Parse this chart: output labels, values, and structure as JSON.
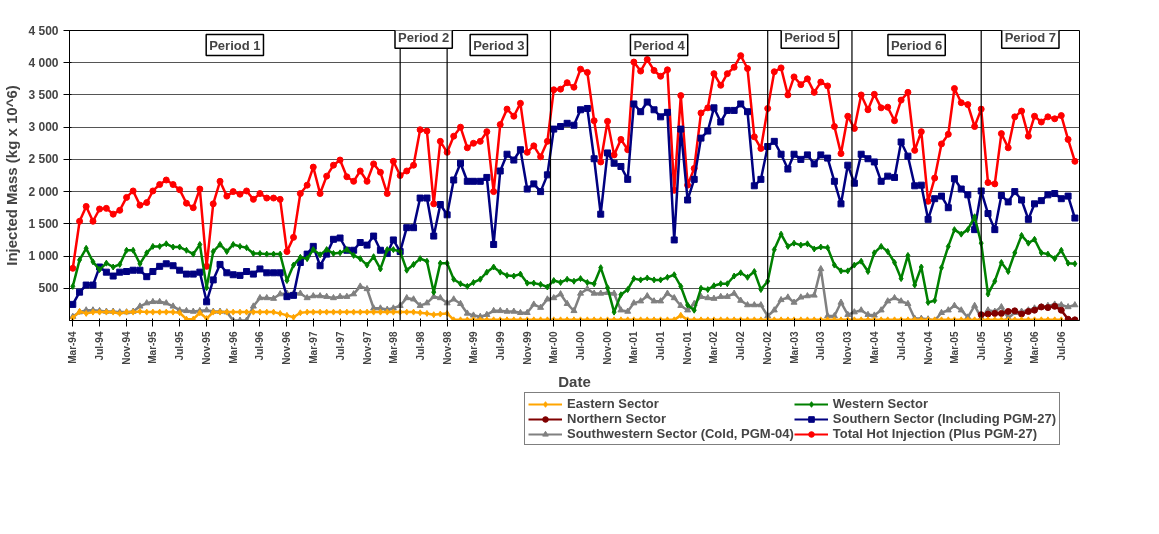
{
  "chart_data": {
    "type": "line",
    "xlabel": "Date",
    "ylabel": "Injected Mass (kg x 10^6)",
    "x": [
      "1994-03",
      "1994-04",
      "1994-05",
      "1994-06",
      "1994-07",
      "1994-08",
      "1994-09",
      "1994-10",
      "1994-11",
      "1994-12",
      "1995-01",
      "1995-02",
      "1995-03",
      "1995-04",
      "1995-05",
      "1995-06",
      "1995-07",
      "1995-08",
      "1995-09",
      "1995-10",
      "1995-11",
      "1995-12",
      "1996-01",
      "1996-02",
      "1996-03",
      "1996-04",
      "1996-05",
      "1996-06",
      "1996-07",
      "1996-08",
      "1996-09",
      "1996-10",
      "1996-11",
      "1996-12",
      "1997-01",
      "1997-02",
      "1997-03",
      "1997-04",
      "1997-05",
      "1997-06",
      "1997-07",
      "1997-08",
      "1997-09",
      "1997-10",
      "1997-11",
      "1997-12",
      "1998-01",
      "1998-02",
      "1998-03",
      "1998-04",
      "1998-05",
      "1998-06",
      "1998-07",
      "1998-08",
      "1998-09",
      "1998-10",
      "1998-11",
      "1998-12",
      "1999-01",
      "1999-02",
      "1999-03",
      "1999-04",
      "1999-05",
      "1999-06",
      "1999-07",
      "1999-08",
      "1999-09",
      "1999-10",
      "1999-11",
      "1999-12",
      "2000-01",
      "2000-02",
      "2000-03",
      "2000-04",
      "2000-05",
      "2000-06",
      "2000-07",
      "2000-08",
      "2000-09",
      "2000-10",
      "2000-11",
      "2000-12",
      "2001-01",
      "2001-02",
      "2001-03",
      "2001-04",
      "2001-05",
      "2001-06",
      "2001-07",
      "2001-08",
      "2001-09",
      "2001-10",
      "2001-11",
      "2001-12",
      "2002-01",
      "2002-02",
      "2002-03",
      "2002-04",
      "2002-05",
      "2002-06",
      "2002-07",
      "2002-08",
      "2002-09",
      "2002-10",
      "2002-11",
      "2002-12",
      "2003-01",
      "2003-02",
      "2003-03",
      "2003-04",
      "2003-05",
      "2003-06",
      "2003-07",
      "2003-08",
      "2003-09",
      "2003-10",
      "2003-11",
      "2003-12",
      "2004-01",
      "2004-02",
      "2004-03",
      "2004-04",
      "2004-05",
      "2004-06",
      "2004-07",
      "2004-08",
      "2004-09",
      "2004-10",
      "2004-11",
      "2004-12",
      "2005-01",
      "2005-02",
      "2005-03",
      "2005-04",
      "2005-05",
      "2005-06",
      "2005-07",
      "2005-08",
      "2005-09",
      "2005-10",
      "2005-11",
      "2005-12",
      "2006-01",
      "2006-02",
      "2006-03",
      "2006-04",
      "2006-05",
      "2006-06",
      "2006-07",
      "2006-08",
      "2006-09"
    ],
    "xlim": [
      "1994-02-14",
      "2006-09-22"
    ],
    "xticks": [
      {
        "value": "1994-03",
        "label": "Mar-94"
      },
      {
        "value": "1994-07",
        "label": "Jul-94"
      },
      {
        "value": "1994-11",
        "label": "Nov-94"
      },
      {
        "value": "1995-03",
        "label": "Mar-95"
      },
      {
        "value": "1995-07",
        "label": "Jul-95"
      },
      {
        "value": "1995-11",
        "label": "Nov-95"
      },
      {
        "value": "1996-03",
        "label": "Mar-96"
      },
      {
        "value": "1996-07",
        "label": "Jul-96"
      },
      {
        "value": "1996-11",
        "label": "Nov-96"
      },
      {
        "value": "1997-03",
        "label": "Mar-97"
      },
      {
        "value": "1997-07",
        "label": "Jul-97"
      },
      {
        "value": "1997-11",
        "label": "Nov-97"
      },
      {
        "value": "1998-03",
        "label": "Mar-98"
      },
      {
        "value": "1998-07",
        "label": "Jul-98"
      },
      {
        "value": "1998-11",
        "label": "Nov-98"
      },
      {
        "value": "1999-03",
        "label": "Mar-99"
      },
      {
        "value": "1999-07",
        "label": "Jul-99"
      },
      {
        "value": "1999-11",
        "label": "Nov-99"
      },
      {
        "value": "2000-03",
        "label": "Mar-00"
      },
      {
        "value": "2000-07",
        "label": "Jul-00"
      },
      {
        "value": "2000-11",
        "label": "Nov-00"
      },
      {
        "value": "2001-03",
        "label": "Mar-01"
      },
      {
        "value": "2001-07",
        "label": "Jul-01"
      },
      {
        "value": "2001-11",
        "label": "Nov-01"
      },
      {
        "value": "2002-03",
        "label": "Mar-02"
      },
      {
        "value": "2002-07",
        "label": "Jul-02"
      },
      {
        "value": "2002-11",
        "label": "Nov-02"
      },
      {
        "value": "2003-03",
        "label": "Mar-03"
      },
      {
        "value": "2003-07",
        "label": "Jul-03"
      },
      {
        "value": "2003-11",
        "label": "Nov-03"
      },
      {
        "value": "2004-03",
        "label": "Mar-04"
      },
      {
        "value": "2004-07",
        "label": "Jul-04"
      },
      {
        "value": "2004-11",
        "label": "Nov-04"
      },
      {
        "value": "2005-03",
        "label": "Mar-05"
      },
      {
        "value": "2005-07",
        "label": "Jul-05"
      },
      {
        "value": "2005-11",
        "label": "Nov-05"
      },
      {
        "value": "2006-03",
        "label": "Mar-06"
      },
      {
        "value": "2006-07",
        "label": "Jul-06"
      }
    ],
    "ylim": [
      0,
      4500
    ],
    "yticks": [
      500,
      {
        "value": 1000,
        "label": "1 000"
      },
      {
        "value": 1500,
        "label": "1 500"
      },
      {
        "value": 2000,
        "label": "2 000"
      },
      {
        "value": 2500,
        "label": "2 500"
      },
      {
        "value": 3000,
        "label": "3 000"
      },
      {
        "value": 3500,
        "label": "3 500"
      },
      {
        "value": 4000,
        "label": "4 000"
      },
      {
        "value": 4500,
        "label": "4 500"
      }
    ],
    "grid": "y",
    "legend": "bottom",
    "series": [
      {
        "name": "Eastern Sector",
        "color": "#ffa500",
        "marker": "diamond",
        "values": [
          40,
          140,
          110,
          130,
          130,
          130,
          130,
          110,
          130,
          130,
          140,
          130,
          130,
          130,
          130,
          130,
          120,
          20,
          20,
          120,
          30,
          130,
          130,
          130,
          130,
          130,
          130,
          130,
          130,
          130,
          130,
          110,
          80,
          50,
          120,
          130,
          130,
          130,
          130,
          130,
          130,
          130,
          130,
          130,
          130,
          130,
          130,
          130,
          130,
          130,
          130,
          130,
          120,
          110,
          90,
          100,
          110,
          10,
          10,
          10,
          10,
          10,
          10,
          10,
          10,
          10,
          10,
          10,
          10,
          10,
          10,
          10,
          10,
          10,
          10,
          10,
          10,
          10,
          10,
          10,
          10,
          10,
          10,
          10,
          10,
          10,
          10,
          10,
          10,
          10,
          10,
          80,
          10,
          10,
          10,
          10,
          10,
          10,
          10,
          10,
          10,
          10,
          10,
          10,
          10,
          10,
          10,
          10,
          10,
          10,
          10,
          10,
          10,
          10,
          10,
          10,
          10,
          10,
          10,
          10,
          10,
          10,
          10,
          10,
          10,
          10,
          10,
          10,
          10,
          10,
          10,
          10,
          10,
          10,
          10,
          10,
          10,
          10,
          10,
          10,
          10,
          10,
          10,
          10,
          10,
          10,
          10,
          10,
          10,
          null,
          null
        ]
      },
      {
        "name": "Western Sector",
        "color": "#008000",
        "marker": "diamond",
        "values": [
          530,
          940,
          1120,
          910,
          790,
          890,
          830,
          870,
          1090,
          1090,
          880,
          1050,
          1150,
          1150,
          1190,
          1140,
          1140,
          1090,
          1030,
          1180,
          510,
          1070,
          1180,
          1070,
          1180,
          1150,
          1130,
          1040,
          1040,
          1030,
          1030,
          1030,
          620,
          860,
          980,
          960,
          1100,
          1020,
          1100,
          1040,
          1050,
          1100,
          1010,
          960,
          860,
          990,
          800,
          1100,
          1100,
          1070,
          780,
          870,
          960,
          920,
          440,
          890,
          890,
          640,
          570,
          530,
          590,
          640,
          750,
          830,
          750,
          700,
          690,
          720,
          580,
          580,
          560,
          520,
          620,
          590,
          640,
          610,
          650,
          590,
          570,
          820,
          510,
          130,
          400,
          480,
          650,
          630,
          660,
          630,
          630,
          670,
          710,
          530,
          240,
          160,
          500,
          480,
          540,
          570,
          570,
          690,
          740,
          670,
          760,
          480,
          610,
          1100,
          1340,
          1150,
          1200,
          1170,
          1190,
          1110,
          1140,
          1130,
          860,
          770,
          770,
          860,
          920,
          760,
          1050,
          1150,
          1070,
          900,
          650,
          1010,
          550,
          830,
          280,
          310,
          820,
          1150,
          1410,
          1340,
          1410,
          1610,
          1200,
          410,
          610,
          900,
          760,
          1050,
          1320,
          1200,
          1260,
          1050,
          1030,
          960,
          1090,
          890,
          880
        ]
      },
      {
        "name": "Northern Sector",
        "color": "#800000",
        "marker": "circle",
        "values": [
          null,
          null,
          null,
          null,
          null,
          null,
          null,
          null,
          null,
          null,
          null,
          null,
          null,
          null,
          null,
          null,
          null,
          null,
          null,
          null,
          null,
          null,
          null,
          null,
          null,
          null,
          null,
          null,
          null,
          null,
          null,
          null,
          null,
          null,
          null,
          null,
          null,
          null,
          null,
          null,
          null,
          null,
          null,
          null,
          null,
          null,
          null,
          null,
          null,
          null,
          null,
          null,
          null,
          null,
          null,
          null,
          null,
          null,
          null,
          null,
          null,
          null,
          null,
          null,
          null,
          null,
          null,
          null,
          null,
          null,
          null,
          null,
          null,
          null,
          null,
          null,
          null,
          null,
          null,
          null,
          null,
          null,
          null,
          null,
          null,
          null,
          null,
          null,
          null,
          null,
          null,
          null,
          null,
          null,
          null,
          null,
          null,
          null,
          null,
          null,
          null,
          null,
          null,
          null,
          null,
          null,
          null,
          null,
          null,
          null,
          null,
          null,
          null,
          null,
          null,
          null,
          null,
          null,
          null,
          null,
          null,
          null,
          null,
          null,
          null,
          null,
          null,
          null,
          null,
          null,
          null,
          null,
          null,
          null,
          null,
          null,
          90,
          100,
          110,
          110,
          140,
          150,
          100,
          140,
          160,
          210,
          200,
          220,
          160,
          20,
          10
        ]
      },
      {
        "name": "Southern Sector (Including PGM-27)",
        "color": "#000080",
        "marker": "square",
        "values": [
          250,
          440,
          550,
          550,
          830,
          750,
          690,
          750,
          760,
          780,
          780,
          680,
          760,
          840,
          880,
          850,
          780,
          720,
          720,
          750,
          290,
          630,
          870,
          740,
          710,
          700,
          760,
          720,
          800,
          740,
          740,
          740,
          370,
          390,
          900,
          1030,
          1150,
          850,
          1030,
          1260,
          1280,
          1090,
          1090,
          1210,
          1170,
          1310,
          1090,
          1040,
          1250,
          1070,
          1440,
          1440,
          1900,
          1900,
          1310,
          1800,
          1640,
          2180,
          2440,
          2160,
          2160,
          2160,
          2220,
          1180,
          2320,
          2580,
          2490,
          2650,
          2040,
          2120,
          2000,
          2260,
          2970,
          3010,
          3060,
          3030,
          3270,
          3290,
          2510,
          1650,
          2600,
          2440,
          2390,
          2190,
          3360,
          3240,
          3390,
          3270,
          3160,
          3230,
          1250,
          2970,
          1870,
          2190,
          2830,
          2940,
          3300,
          3080,
          3260,
          3260,
          3360,
          3240,
          2090,
          2190,
          2700,
          2780,
          2580,
          2350,
          2580,
          2500,
          2570,
          2430,
          2570,
          2520,
          2160,
          1810,
          2410,
          2130,
          2580,
          2510,
          2460,
          2160,
          2240,
          2220,
          2770,
          2550,
          2090,
          2100,
          1570,
          1890,
          1930,
          1750,
          2200,
          2040,
          1950,
          1410,
          2010,
          1660,
          1410,
          1940,
          1840,
          2000,
          1870,
          1570,
          1810,
          1860,
          1950,
          1970,
          1890,
          1930,
          1590
        ]
      },
      {
        "name": "Southwestern Sector (Cold, PGM-04)",
        "color": "#808080",
        "marker": "triangle",
        "values": [
          60,
          130,
          160,
          160,
          150,
          140,
          140,
          130,
          130,
          140,
          220,
          270,
          290,
          290,
          270,
          220,
          160,
          150,
          140,
          150,
          160,
          140,
          140,
          130,
          0,
          0,
          0,
          220,
          350,
          350,
          340,
          410,
          420,
          420,
          420,
          350,
          380,
          380,
          370,
          350,
          370,
          370,
          410,
          530,
          490,
          190,
          190,
          170,
          190,
          230,
          350,
          330,
          230,
          270,
          370,
          350,
          270,
          330,
          260,
          110,
          80,
          60,
          90,
          150,
          150,
          140,
          140,
          120,
          120,
          250,
          200,
          330,
          350,
          410,
          260,
          150,
          420,
          490,
          420,
          420,
          430,
          420,
          160,
          140,
          270,
          300,
          380,
          300,
          300,
          420,
          350,
          230,
          160,
          260,
          370,
          350,
          340,
          370,
          370,
          420,
          310,
          240,
          240,
          240,
          70,
          160,
          320,
          360,
          280,
          360,
          380,
          390,
          800,
          70,
          70,
          280,
          90,
          130,
          160,
          90,
          80,
          160,
          300,
          350,
          300,
          260,
          30,
          30,
          20,
          0,
          120,
          160,
          230,
          160,
          50,
          230,
          40,
          160,
          140,
          210,
          40,
          120,
          140,
          160,
          190,
          210,
          230,
          250,
          240,
          210,
          240
        ]
      },
      {
        "name": "Total Hot Injection (Plus PGM-27)",
        "color": "#ff0000",
        "marker": "circle",
        "values": [
          810,
          1540,
          1770,
          1540,
          1730,
          1740,
          1650,
          1710,
          1910,
          2010,
          1790,
          1830,
          2010,
          2110,
          2180,
          2110,
          2030,
          1820,
          1750,
          2040,
          840,
          1810,
          2160,
          1930,
          2000,
          1960,
          2010,
          1880,
          1970,
          1900,
          1900,
          1880,
          1070,
          1290,
          1970,
          2100,
          2380,
          1970,
          2240,
          2410,
          2490,
          2230,
          2160,
          2320,
          2160,
          2430,
          2300,
          1970,
          2470,
          2250,
          2320,
          2410,
          2960,
          2940,
          1810,
          2780,
          2610,
          2860,
          3000,
          2680,
          2750,
          2780,
          2930,
          2000,
          3040,
          3280,
          3170,
          3370,
          2610,
          2710,
          2540,
          2780,
          3580,
          3590,
          3690,
          3620,
          3900,
          3850,
          3100,
          2460,
          3090,
          2570,
          2810,
          2650,
          4010,
          3870,
          4050,
          3880,
          3790,
          3890,
          2020,
          3490,
          2100,
          2360,
          3220,
          3300,
          3830,
          3650,
          3830,
          3930,
          4110,
          3910,
          2850,
          2670,
          3290,
          3860,
          3920,
          3500,
          3780,
          3660,
          3750,
          3540,
          3700,
          3640,
          3010,
          2590,
          3170,
          2980,
          3500,
          3270,
          3510,
          3300,
          3310,
          3100,
          3420,
          3540,
          2640,
          2930,
          1850,
          2210,
          2740,
          2890,
          3600,
          3380,
          3350,
          3010,
          3280,
          2140,
          2120,
          2900,
          2680,
          3160,
          3250,
          2860,
          3170,
          3080,
          3160,
          3130,
          3180,
          2810,
          2470
        ]
      }
    ],
    "ref_lines": [
      {
        "axis": "x",
        "value": "1998-04"
      },
      {
        "axis": "x",
        "value": "1998-11"
      },
      {
        "axis": "x",
        "value": "2000-02-15"
      },
      {
        "axis": "x",
        "value": "2002-11"
      },
      {
        "axis": "x",
        "value": "2003-11-20"
      },
      {
        "axis": "x",
        "value": "2005-07"
      }
    ],
    "annotations": [
      "Period 1",
      "Period 2",
      "Period 3",
      "Period 4",
      "Period 5",
      "Period 6",
      "Period 7"
    ]
  }
}
